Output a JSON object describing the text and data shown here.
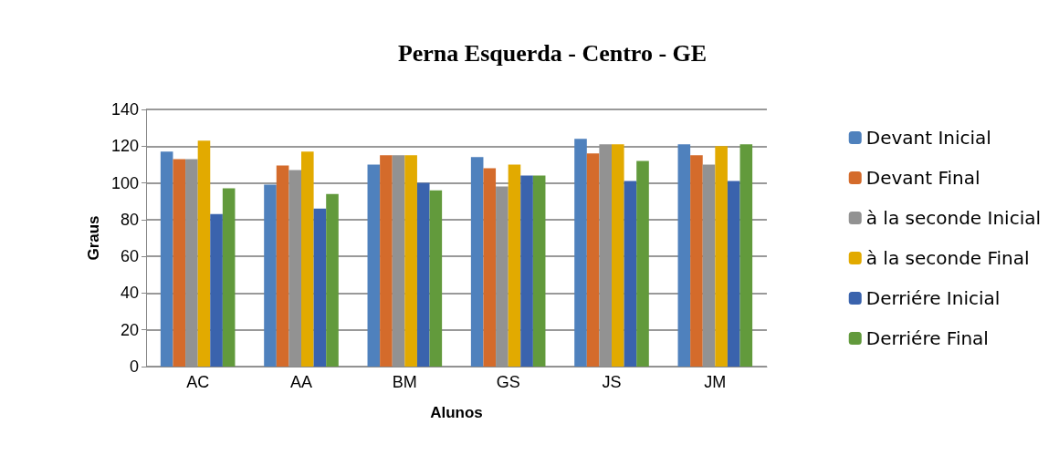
{
  "chart_data": {
    "type": "bar",
    "title": "Perna Esquerda - Centro - GE",
    "xlabel": "Alunos",
    "ylabel": "Graus",
    "categories": [
      "AC",
      "AA",
      "BM",
      "GS",
      "JS",
      "JM"
    ],
    "series": [
      {
        "name": "Devant Inicial",
        "color": "#4f81bd",
        "values": [
          117,
          99,
          110,
          114,
          124,
          121
        ]
      },
      {
        "name": "Devant Final",
        "color": "#d46b2b",
        "values": [
          113,
          109.5,
          115,
          108,
          116,
          115
        ]
      },
      {
        "name": "à la seconde Inicial",
        "color": "#929292",
        "values": [
          113,
          107,
          115,
          98,
          121,
          110
        ]
      },
      {
        "name": "à la seconde Final",
        "color": "#e2aa00",
        "values": [
          123,
          117,
          115,
          110,
          121,
          120
        ]
      },
      {
        "name": "Derriére Inicial",
        "color": "#3a63ad",
        "values": [
          83,
          86,
          100,
          104,
          101,
          101
        ]
      },
      {
        "name": "Derriére Final",
        "color": "#629a3c",
        "values": [
          97,
          94,
          96,
          104,
          112,
          121
        ]
      }
    ],
    "ylim": [
      0,
      140
    ],
    "yticks": [
      0,
      20,
      40,
      60,
      80,
      100,
      120,
      140
    ],
    "grid": "y",
    "legend": "right"
  }
}
